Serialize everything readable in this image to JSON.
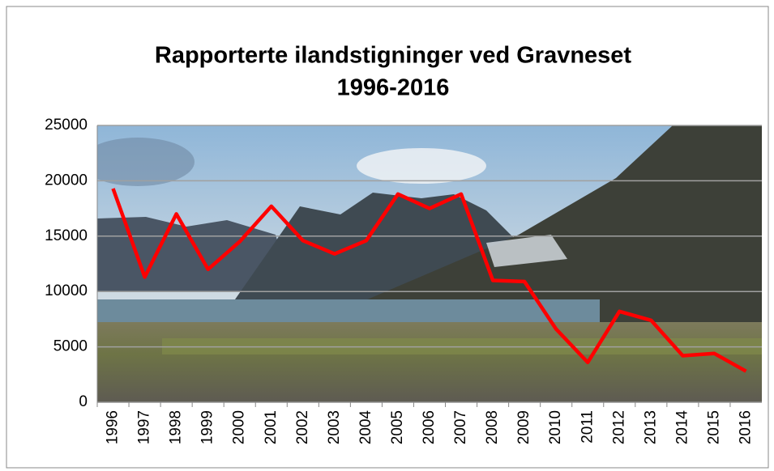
{
  "chart_data": {
    "type": "line",
    "title": [
      "Rapporterte ilandstigninger ved Gravneset",
      "1996-2016"
    ],
    "categories": [
      "1996",
      "1997",
      "1998",
      "1999",
      "2000",
      "2001",
      "2002",
      "2003",
      "2004",
      "2005",
      "2006",
      "2007",
      "2008",
      "2009",
      "2010",
      "2011",
      "2012",
      "2013",
      "2014",
      "2015",
      "2016"
    ],
    "values": [
      19300,
      11300,
      17000,
      12000,
      14500,
      17700,
      14600,
      13400,
      14600,
      18800,
      17500,
      18800,
      11000,
      10900,
      6600,
      3600,
      8200,
      7400,
      4200,
      4400,
      2800
    ],
    "color": "#ff0000",
    "ylim": [
      0,
      25000
    ],
    "yticks": [
      0,
      5000,
      10000,
      15000,
      20000,
      25000
    ],
    "grid": true
  }
}
